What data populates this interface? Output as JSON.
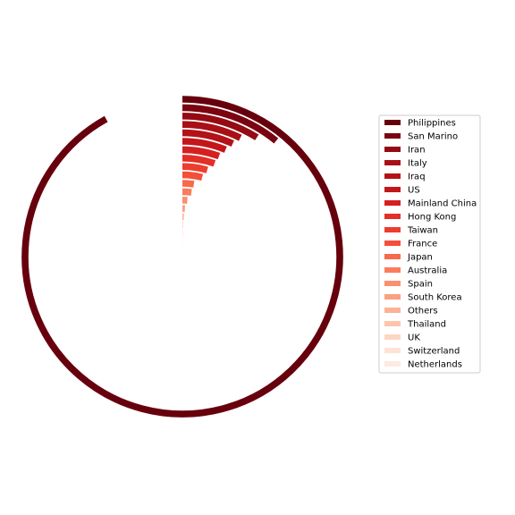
{
  "chart_data": {
    "type": "radial-bar",
    "title": "",
    "legend_position": "right",
    "angle_unit": "degrees",
    "direction": "clockwise from top",
    "categories": [
      "Philippines",
      "San Marino",
      "Iran",
      "Italy",
      "Iraq",
      "US",
      "Mainland China",
      "Hong Kong",
      "Taiwan",
      "France",
      "Japan",
      "Australia",
      "Spain",
      "South Korea",
      "Others",
      "Thailand",
      "UK",
      "Switzerland",
      "Netherlands"
    ],
    "values": [
      331,
      39,
      32,
      26,
      24,
      22,
      20,
      19,
      16,
      14,
      9,
      8,
      5,
      3,
      2,
      1,
      1,
      0.5,
      0.3
    ],
    "colors": [
      "#67000d",
      "#7a0510",
      "#940b13",
      "#a91016",
      "#b31218",
      "#c3161b",
      "#d42020",
      "#e32f27",
      "#ec3e2e",
      "#f44f39",
      "#f9694c",
      "#fb7c5c",
      "#fc8f6f",
      "#fca082",
      "#fcb295",
      "#fdc5ad",
      "#fdd5c3",
      "#fee2d6",
      "#feeae1"
    ]
  }
}
